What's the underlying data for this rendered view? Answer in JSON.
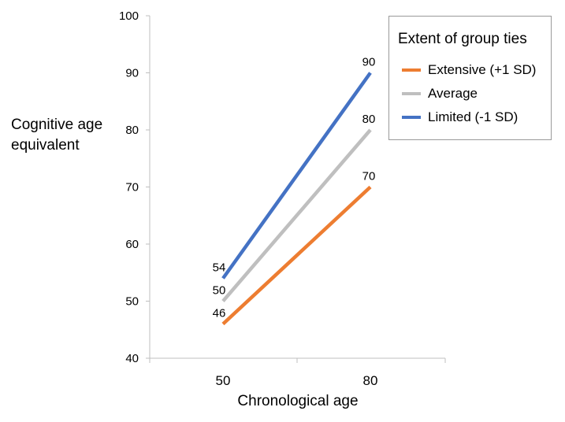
{
  "chart_data": {
    "type": "line",
    "xlabel": "Chronological age",
    "ylabel": "Cognitive age equivalent",
    "x_categories": [
      "50",
      "80"
    ],
    "ylim": [
      40,
      100
    ],
    "yticks": [
      "40",
      "50",
      "60",
      "70",
      "80",
      "90",
      "100"
    ],
    "grid": false,
    "legend": {
      "title": "Extent of group ties",
      "placement": "top-right"
    },
    "series": [
      {
        "name": "Extensive (+1 SD)",
        "color": "#ed7d31",
        "values": [
          46,
          70
        ],
        "labels": [
          "46",
          "70"
        ]
      },
      {
        "name": "Average",
        "color": "#bfbfbf",
        "values": [
          50,
          80
        ],
        "labels": [
          "50",
          "80"
        ]
      },
      {
        "name": "Limited (-1 SD)",
        "color": "#4472c4",
        "values": [
          54,
          90
        ],
        "labels": [
          "54",
          "90"
        ]
      }
    ]
  }
}
